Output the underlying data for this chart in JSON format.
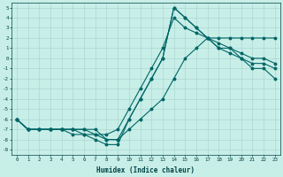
{
  "xlabel": "Humidex (Indice chaleur)",
  "background_color": "#c8eee8",
  "grid_color": "#aad8d0",
  "line_color": "#006666",
  "xlim": [
    -0.5,
    23.5
  ],
  "ylim": [
    -9.5,
    5.5
  ],
  "xticks": [
    0,
    1,
    2,
    3,
    4,
    5,
    6,
    7,
    8,
    9,
    10,
    11,
    12,
    13,
    14,
    15,
    16,
    17,
    18,
    19,
    20,
    21,
    22,
    23
  ],
  "yticks": [
    5,
    4,
    3,
    2,
    1,
    0,
    -1,
    -2,
    -3,
    -4,
    -5,
    -6,
    -7,
    -8,
    -9
  ],
  "line1_x": [
    0,
    1,
    2,
    3,
    4,
    5,
    6,
    7,
    8,
    9,
    10,
    11,
    12,
    13,
    14,
    15,
    16,
    17,
    18,
    19,
    20,
    21,
    22,
    23
  ],
  "line1_y": [
    -6,
    -7,
    -7,
    -7,
    -7,
    -7,
    -7,
    -7,
    -8,
    -8,
    -7,
    -6,
    -5,
    -4,
    -2,
    0,
    1,
    2,
    2,
    2,
    2,
    2,
    2,
    2
  ],
  "line2_x": [
    0,
    1,
    2,
    3,
    4,
    5,
    6,
    7,
    8,
    9,
    10,
    11,
    12,
    13,
    14,
    15,
    16,
    17,
    18,
    19,
    20,
    21,
    22,
    23
  ],
  "line2_y": [
    -6,
    -7,
    -7,
    -7,
    -7,
    -7.5,
    -7.5,
    -8,
    -8.5,
    -8.5,
    -6,
    -4,
    -2,
    0,
    5,
    4,
    3,
    2,
    1,
    1,
    0,
    -1,
    -1,
    -2
  ],
  "line3_x": [
    0,
    1,
    2,
    3,
    4,
    5,
    6,
    7,
    8,
    9,
    10,
    11,
    12,
    13,
    14,
    15,
    16,
    17,
    18,
    19,
    20,
    21,
    22,
    23
  ],
  "line3_y": [
    -6,
    -7,
    -7,
    -7,
    -7,
    -7,
    -7.5,
    -7.5,
    -8,
    -8,
    -6,
    -4,
    -2,
    0,
    5,
    4,
    3,
    2,
    1,
    0.5,
    0,
    -0.5,
    -0.5,
    -1
  ],
  "line4_x": [
    0,
    1,
    2,
    3,
    4,
    5,
    6,
    7,
    8,
    9,
    10,
    11,
    12,
    13,
    14,
    15,
    16,
    17,
    18,
    19,
    20,
    21,
    22,
    23
  ],
  "line4_y": [
    -6,
    -7,
    -7,
    -7,
    -7,
    -7,
    -7,
    -7.5,
    -7.5,
    -7,
    -5,
    -3,
    -1,
    1,
    4,
    3,
    2.5,
    2,
    1.5,
    1,
    0.5,
    0,
    0,
    -0.5
  ]
}
